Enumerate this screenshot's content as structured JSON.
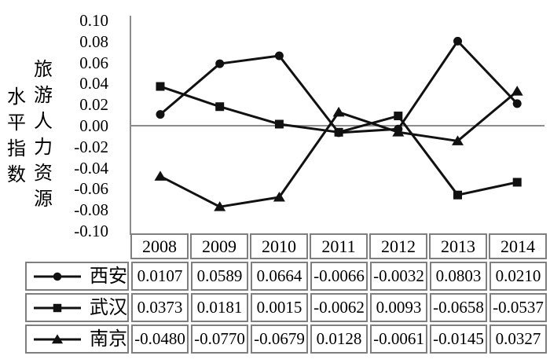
{
  "chart_data": {
    "type": "line",
    "x": [
      "2008",
      "2009",
      "2010",
      "2011",
      "2012",
      "2013",
      "2014"
    ],
    "series": [
      {
        "name": "西安",
        "marker": "circle",
        "values": [
          0.0107,
          0.0589,
          0.0664,
          -0.0066,
          -0.0032,
          0.0803,
          0.021
        ]
      },
      {
        "name": "武汉",
        "marker": "square",
        "values": [
          0.0373,
          0.0181,
          0.0015,
          -0.0062,
          0.0093,
          -0.0658,
          -0.0537
        ]
      },
      {
        "name": "南京",
        "marker": "triangle",
        "values": [
          -0.048,
          -0.077,
          -0.0679,
          0.0128,
          -0.0061,
          -0.0145,
          0.0327
        ]
      }
    ],
    "ylabel": "旅游人力资源水平指数",
    "ylabel_lines": [
      "旅游人力资源",
      "水平指数"
    ],
    "ylim": [
      -0.1,
      0.1
    ],
    "ytick_step": 0.02,
    "yticks": [
      "0.10",
      "0.08",
      "0.06",
      "0.04",
      "0.02",
      "0.00",
      "-0.02",
      "-0.04",
      "-0.06",
      "-0.08",
      "-0.10"
    ],
    "grid": false,
    "zero_line": true,
    "legend_position": "table-left",
    "colors": {
      "series": "#111111",
      "axis_line": "#8c8c8c",
      "zero_line": "#8c8c8c",
      "table_border": "#7f7f7f",
      "text": "#000000"
    }
  },
  "table": {
    "year_header": [
      "2008",
      "2009",
      "2010",
      "2011",
      "2012",
      "2013",
      "2014"
    ],
    "rows": [
      {
        "label": "西安",
        "marker": "circle",
        "display_values": [
          "0.0107",
          "0.0589",
          "0.0664",
          "-0.0066",
          "-0.0032",
          "0.0803",
          "0.0210"
        ]
      },
      {
        "label": "武汉",
        "marker": "square",
        "display_values": [
          "0.0373",
          "0.0181",
          "0.0015",
          "-0.0062",
          "0.0093",
          "-0.0658",
          "-0.0537"
        ]
      },
      {
        "label": "南京",
        "marker": "triangle",
        "display_values": [
          "-0.0480",
          "-0.0770",
          "-0.0679",
          "0.0128",
          "-0.0061",
          "-0.0145",
          "0.0327"
        ]
      }
    ]
  }
}
